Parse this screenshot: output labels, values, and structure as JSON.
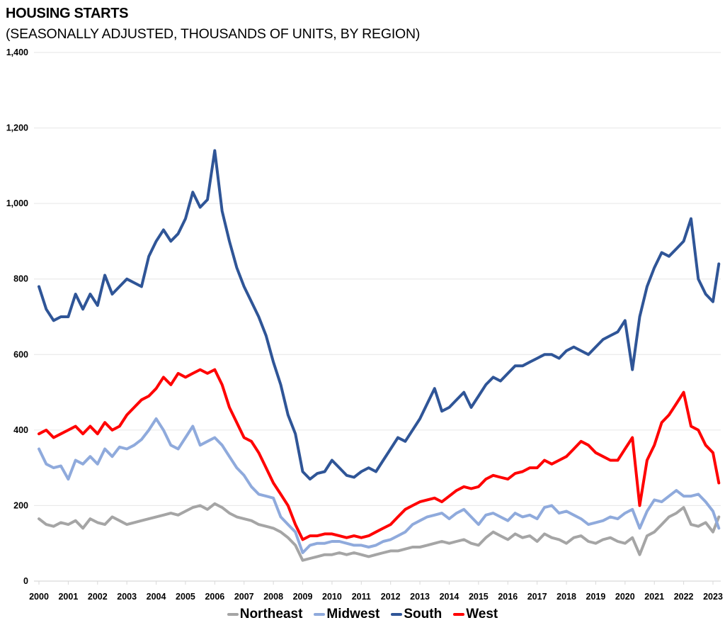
{
  "chart_data": {
    "type": "line",
    "title": "HOUSING STARTS",
    "subtitle": "(SEASONALLY ADJUSTED, THOUSANDS OF UNITS, BY REGION)",
    "xlabel": "",
    "ylabel": "",
    "ylim": [
      0,
      1400
    ],
    "xlim": [
      2000,
      2023.3
    ],
    "yticks": [
      0,
      200,
      400,
      600,
      800,
      1000,
      1200,
      1400
    ],
    "ytick_labels": [
      "0",
      "200",
      "400",
      "600",
      "800",
      "1,000",
      "1,200",
      "1,400"
    ],
    "xticks": [
      2000,
      2001,
      2002,
      2003,
      2004,
      2005,
      2006,
      2007,
      2008,
      2009,
      2010,
      2011,
      2012,
      2013,
      2014,
      2015,
      2016,
      2017,
      2018,
      2019,
      2020,
      2021,
      2022,
      2023
    ],
    "xtick_labels": [
      "2000",
      "2001",
      "2002",
      "2003",
      "2004",
      "2005",
      "2006",
      "2007",
      "2008",
      "2009",
      "2010",
      "2011",
      "2012",
      "2013",
      "2014",
      "2015",
      "2016",
      "2017",
      "2018",
      "2019",
      "2020",
      "2021",
      "2022",
      "2023"
    ],
    "grid": "horizontal",
    "legend_position": "bottom",
    "x": [
      2000.0,
      2000.25,
      2000.5,
      2000.75,
      2001.0,
      2001.25,
      2001.5,
      2001.75,
      2002.0,
      2002.25,
      2002.5,
      2002.75,
      2003.0,
      2003.25,
      2003.5,
      2003.75,
      2004.0,
      2004.25,
      2004.5,
      2004.75,
      2005.0,
      2005.25,
      2005.5,
      2005.75,
      2006.0,
      2006.25,
      2006.5,
      2006.75,
      2007.0,
      2007.25,
      2007.5,
      2007.75,
      2008.0,
      2008.25,
      2008.5,
      2008.75,
      2009.0,
      2009.25,
      2009.5,
      2009.75,
      2010.0,
      2010.25,
      2010.5,
      2010.75,
      2011.0,
      2011.25,
      2011.5,
      2011.75,
      2012.0,
      2012.25,
      2012.5,
      2012.75,
      2013.0,
      2013.25,
      2013.5,
      2013.75,
      2014.0,
      2014.25,
      2014.5,
      2014.75,
      2015.0,
      2015.25,
      2015.5,
      2015.75,
      2016.0,
      2016.25,
      2016.5,
      2016.75,
      2017.0,
      2017.25,
      2017.5,
      2017.75,
      2018.0,
      2018.25,
      2018.5,
      2018.75,
      2019.0,
      2019.25,
      2019.5,
      2019.75,
      2020.0,
      2020.25,
      2020.5,
      2020.75,
      2021.0,
      2021.25,
      2021.5,
      2021.75,
      2022.0,
      2022.25,
      2022.5,
      2022.75,
      2023.0,
      2023.2
    ],
    "series": [
      {
        "name": "Northeast",
        "color": "#A5A5A5",
        "values": [
          165,
          150,
          145,
          155,
          150,
          160,
          140,
          165,
          155,
          150,
          170,
          160,
          150,
          155,
          160,
          165,
          170,
          175,
          180,
          175,
          185,
          195,
          200,
          190,
          205,
          195,
          180,
          170,
          165,
          160,
          150,
          145,
          140,
          130,
          115,
          95,
          55,
          60,
          65,
          70,
          70,
          75,
          70,
          75,
          70,
          65,
          70,
          75,
          80,
          80,
          85,
          90,
          90,
          95,
          100,
          105,
          100,
          105,
          110,
          100,
          95,
          115,
          130,
          120,
          110,
          125,
          115,
          120,
          105,
          125,
          115,
          110,
          100,
          115,
          120,
          105,
          100,
          110,
          115,
          105,
          100,
          115,
          70,
          120,
          130,
          150,
          170,
          180,
          195,
          150,
          145,
          155,
          130,
          170
        ]
      },
      {
        "name": "Midwest",
        "color": "#8FAADC",
        "values": [
          350,
          310,
          300,
          305,
          270,
          320,
          310,
          330,
          310,
          350,
          330,
          355,
          350,
          360,
          375,
          400,
          430,
          400,
          360,
          350,
          380,
          410,
          360,
          370,
          380,
          360,
          330,
          300,
          280,
          250,
          230,
          225,
          220,
          170,
          150,
          130,
          75,
          95,
          100,
          100,
          105,
          105,
          100,
          95,
          95,
          90,
          95,
          105,
          110,
          120,
          130,
          150,
          160,
          170,
          175,
          180,
          165,
          180,
          190,
          170,
          150,
          175,
          180,
          170,
          160,
          180,
          170,
          175,
          165,
          195,
          200,
          180,
          185,
          175,
          165,
          150,
          155,
          160,
          170,
          165,
          180,
          190,
          140,
          185,
          215,
          210,
          225,
          240,
          225,
          225,
          230,
          210,
          185,
          140
        ]
      },
      {
        "name": "South",
        "color": "#2F5597",
        "values": [
          780,
          720,
          690,
          700,
          700,
          760,
          720,
          760,
          730,
          810,
          760,
          780,
          800,
          790,
          780,
          860,
          900,
          930,
          900,
          920,
          960,
          1030,
          990,
          1010,
          1140,
          980,
          900,
          830,
          780,
          740,
          700,
          650,
          580,
          520,
          440,
          390,
          290,
          270,
          285,
          290,
          320,
          300,
          280,
          275,
          290,
          300,
          290,
          320,
          350,
          380,
          370,
          400,
          430,
          470,
          510,
          450,
          460,
          480,
          500,
          460,
          490,
          520,
          540,
          530,
          550,
          570,
          570,
          580,
          590,
          600,
          600,
          590,
          610,
          620,
          610,
          600,
          620,
          640,
          650,
          660,
          690,
          560,
          700,
          780,
          830,
          870,
          860,
          880,
          900,
          960,
          800,
          760,
          740,
          840
        ]
      },
      {
        "name": "West",
        "color": "#FF0000",
        "values": [
          390,
          400,
          380,
          390,
          400,
          410,
          390,
          410,
          390,
          420,
          400,
          410,
          440,
          460,
          480,
          490,
          510,
          540,
          520,
          550,
          540,
          550,
          560,
          550,
          560,
          520,
          460,
          420,
          380,
          370,
          340,
          300,
          260,
          230,
          200,
          150,
          110,
          120,
          120,
          125,
          125,
          120,
          115,
          120,
          115,
          120,
          130,
          140,
          150,
          170,
          190,
          200,
          210,
          215,
          220,
          210,
          225,
          240,
          250,
          245,
          250,
          270,
          280,
          275,
          270,
          285,
          290,
          300,
          300,
          320,
          310,
          320,
          330,
          350,
          370,
          360,
          340,
          330,
          320,
          320,
          350,
          380,
          200,
          320,
          360,
          420,
          440,
          470,
          500,
          410,
          400,
          360,
          340,
          260
        ]
      }
    ]
  }
}
